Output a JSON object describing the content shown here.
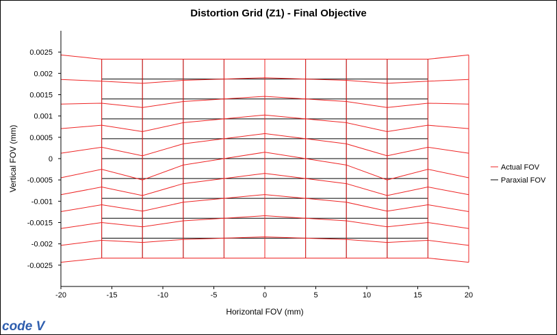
{
  "chart_data": {
    "type": "line",
    "title": "Distortion Grid (Z1) - Final Objective",
    "xlabel": "Horizontal FOV (mm)",
    "ylabel": "Vertical FOV (mm)",
    "xlim": [
      -20,
      20
    ],
    "ylim": [
      -0.003,
      0.003
    ],
    "xticks": [
      -20,
      -15,
      -10,
      -5,
      0,
      5,
      10,
      15,
      20
    ],
    "xtick_labels": [
      "-20",
      "-15",
      "-10",
      "-5",
      "0",
      "5",
      "10",
      "15",
      "20"
    ],
    "yticks": [
      0.0025,
      0.002,
      0.0015,
      0.001,
      0.0005,
      0,
      -0.0005,
      -0.001,
      -0.0015,
      -0.002,
      -0.0025
    ],
    "ytick_labels": [
      "0.0025",
      "0.002",
      "0.0015",
      "0.001",
      "0.0005",
      "0",
      "-0.0005",
      "-0.001",
      "-0.0015",
      "-0.002",
      "-0.0025"
    ],
    "grid": false,
    "legend_position": "right",
    "series": [
      {
        "name": "Actual FOV",
        "color": "#ee2222",
        "grid_x": [
          -20,
          -16,
          -12,
          -8,
          -4,
          0,
          4,
          8,
          12,
          16,
          20
        ],
        "grid_y": [
          0.0023333,
          0.0018667,
          0.0014,
          0.00093333,
          0.00046667,
          0,
          -0.00046667,
          -0.00093333,
          -0.0014,
          -0.0018667,
          -0.0023333
        ],
        "distortion_model": "y_actual = y + f(x)*(1 - 1.5*|y|/0.0023333) + y*e(x), x_actual = x + y*g(x)",
        "edge_rise_per_unit_y": [
          0.1214,
          0.0,
          0.0,
          0.0,
          0.0,
          0.0,
          0.0,
          0.0,
          0.0,
          0.0,
          0.1214
        ],
        "x_shift_per_unit_y": [
          0,
          -0.4286,
          0,
          0,
          0.4286,
          0,
          -0.4286,
          0,
          0,
          0.4286,
          0
        ],
        "center_offset": [
          -0.00045,
          -0.00025,
          -0.0005,
          -0.00015,
          0.0,
          0.00015,
          0.0,
          -0.00015,
          -0.0005,
          -0.00025,
          -0.00045
        ]
      },
      {
        "name": "Paraxial FOV",
        "color": "#000000",
        "grid_x": [
          -20,
          -16,
          -12,
          -8,
          -4,
          0,
          4,
          8,
          12,
          16,
          20
        ],
        "grid_y": [
          0.0023333,
          0.0018667,
          0.0014,
          0.00093333,
          0.00046667,
          0,
          -0.00046667,
          -0.00093333,
          -0.0014,
          -0.0018667,
          -0.0023333
        ]
      }
    ]
  },
  "logo": {
    "text": "code V"
  }
}
